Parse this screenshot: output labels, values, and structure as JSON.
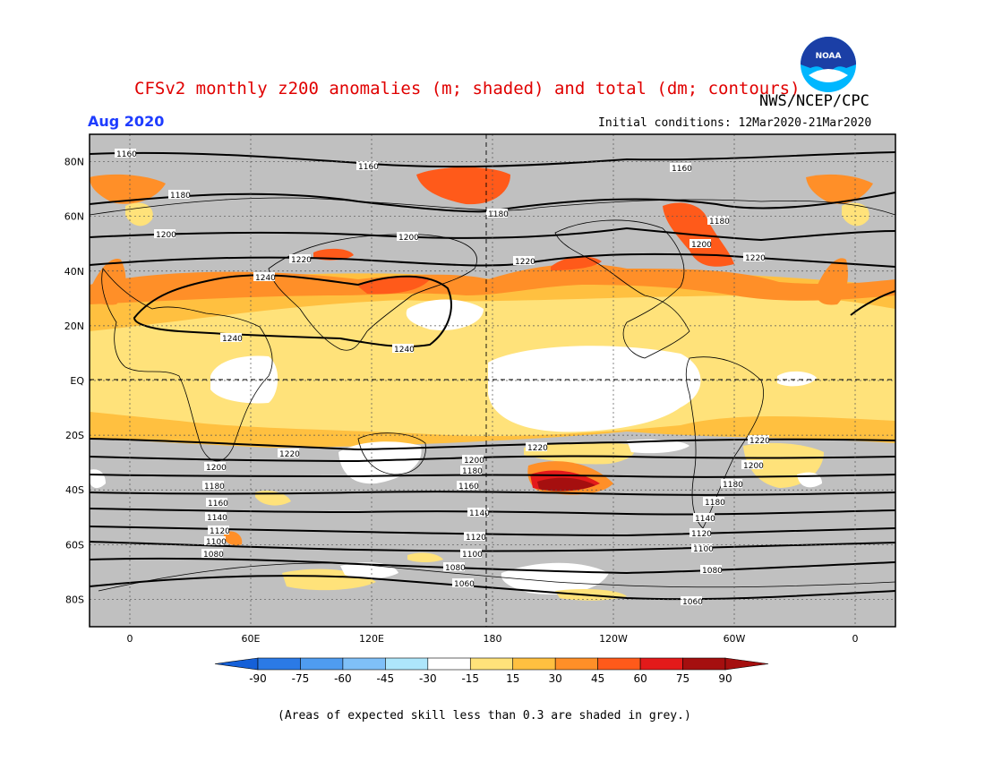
{
  "title": "CFSv2 monthly z200 anomalies (m; shaded) and total (dm; contours)",
  "agency": "NWS/NCEP/CPC",
  "logo_text": "NOAA",
  "valid_month": "Aug 2020",
  "initial_conditions": "Initial conditions: 12Mar2020-21Mar2020",
  "footnote": "(Areas of expected skill less than 0.3 are shaded in grey.)",
  "colors": {
    "grey_low_skill": "#c0c0c0",
    "white_band": "#ffffff",
    "y15_30": "#ffe27a",
    "o30_45": "#ffc040",
    "o45_60": "#ff8f28",
    "r60_75": "#ff5a1a",
    "r75_90": "#e31a1a",
    "dr90": "#a50f0f",
    "title": "#e00000",
    "month": "#1e3cff"
  },
  "map": {
    "lat_labels": [
      "80N",
      "60N",
      "40N",
      "20N",
      "EQ",
      "20S",
      "40S",
      "60S",
      "80S"
    ],
    "lat_values": [
      80,
      60,
      40,
      20,
      0,
      -20,
      -40,
      -60,
      -80
    ],
    "lon_labels": [
      "0",
      "60E",
      "120E",
      "180",
      "120W",
      "60W",
      "0"
    ],
    "lon_values": [
      0,
      60,
      120,
      180,
      240,
      300,
      360
    ],
    "lon_range": [
      -20,
      380
    ],
    "lat_range": [
      -90,
      90
    ],
    "contour_values_dm": [
      "1060",
      "1080",
      "1100",
      "1120",
      "1140",
      "1160",
      "1180",
      "1200",
      "1220",
      "1240"
    ]
  },
  "colorbar": {
    "ticks": [
      "-90",
      "-75",
      "-60",
      "-45",
      "-30",
      "-15",
      "15",
      "30",
      "45",
      "60",
      "75",
      "90"
    ],
    "colors": [
      "#1560d8",
      "#2b7ae6",
      "#4f9cf0",
      "#7fc0f8",
      "#aee6fb",
      "#ffffff",
      "#ffe27a",
      "#ffc040",
      "#ff8f28",
      "#ff5a1a",
      "#e31a1a",
      "#a50f0f"
    ],
    "min_color": "#1560d8",
    "max_color": "#a50f0f"
  }
}
